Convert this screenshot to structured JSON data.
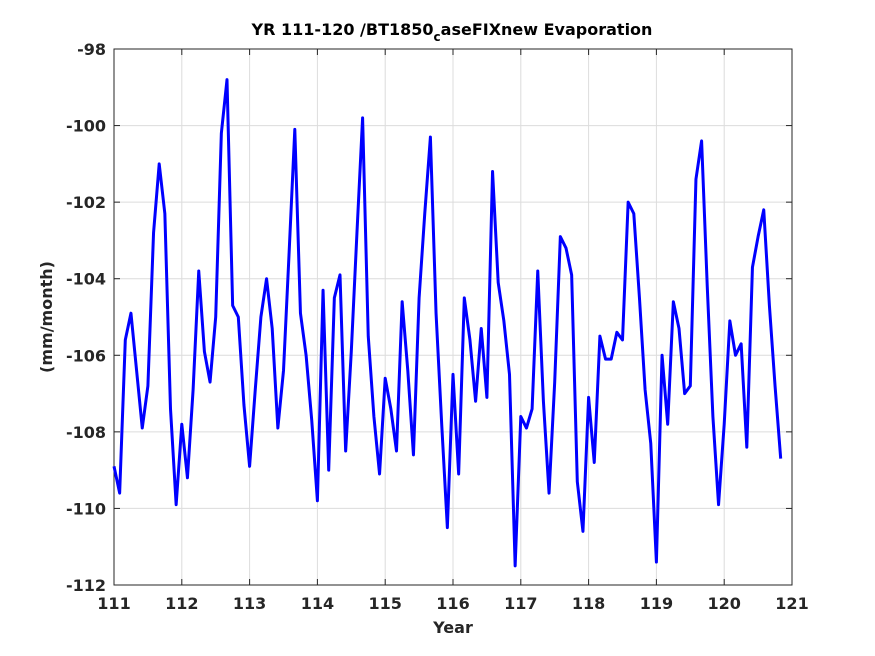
{
  "chart_data": {
    "type": "line",
    "title_main": "YR 111-120 /BT1850",
    "title_sub": "c",
    "title_rest": "aseFIXnew Evaporation",
    "xlabel": "Year",
    "ylabel": "(mm/month)",
    "xlim": [
      111,
      121
    ],
    "ylim": [
      -112,
      -98
    ],
    "grid": true,
    "x_ticks": [
      "111",
      "112",
      "113",
      "114",
      "115",
      "116",
      "117",
      "118",
      "119",
      "120",
      "121"
    ],
    "y_ticks": [
      "-98",
      "-100",
      "-102",
      "-104",
      "-106",
      "-108",
      "-110",
      "-112"
    ],
    "colors": {
      "line": "#0000ff",
      "grid": "#dcdcdc",
      "axes": "#262626"
    },
    "series": [
      {
        "x_start": 111.0,
        "x_step": 0.08333333,
        "values": [
          -108.9,
          -109.6,
          -105.6,
          -104.9,
          -106.4,
          -107.9,
          -106.8,
          -102.8,
          -101.0,
          -102.3,
          -107.4,
          -109.9,
          -107.8,
          -109.2,
          -106.9,
          -103.8,
          -105.9,
          -106.7,
          -105.0,
          -100.2,
          -98.8,
          -104.7,
          -105.0,
          -107.3,
          -108.9,
          -106.9,
          -105.0,
          -104.0,
          -105.3,
          -107.9,
          -106.4,
          -103.3,
          -100.1,
          -104.9,
          -106.0,
          -107.7,
          -109.8,
          -104.3,
          -109.0,
          -104.5,
          -103.9,
          -108.5,
          -105.9,
          -102.8,
          -99.8,
          -105.5,
          -107.6,
          -109.1,
          -106.6,
          -107.4,
          -108.5,
          -104.6,
          -106.4,
          -108.6,
          -104.5,
          -102.3,
          -100.3,
          -104.9,
          -107.8,
          -110.5,
          -106.5,
          -109.1,
          -104.5,
          -105.6,
          -107.2,
          -105.3,
          -107.1,
          -101.2,
          -104.1,
          -105.1,
          -106.5,
          -111.5,
          -107.6,
          -107.9,
          -107.4,
          -103.8,
          -107.2,
          -109.6,
          -106.7,
          -102.9,
          -103.2,
          -103.9,
          -109.3,
          -110.6,
          -107.1,
          -108.8,
          -105.5,
          -106.1,
          -106.1,
          -105.4,
          -105.6,
          -102.0,
          -102.3,
          -104.5,
          -106.9,
          -108.3,
          -111.4,
          -106.0,
          -107.8,
          -104.6,
          -105.3,
          -107.0,
          -106.8,
          -101.4,
          -100.4,
          -104.2,
          -107.6,
          -109.9,
          -107.8,
          -105.1,
          -106.0,
          -105.7,
          -108.4,
          -103.7,
          -102.9,
          -102.2,
          -104.7,
          -106.8,
          -108.7
        ]
      }
    ]
  }
}
